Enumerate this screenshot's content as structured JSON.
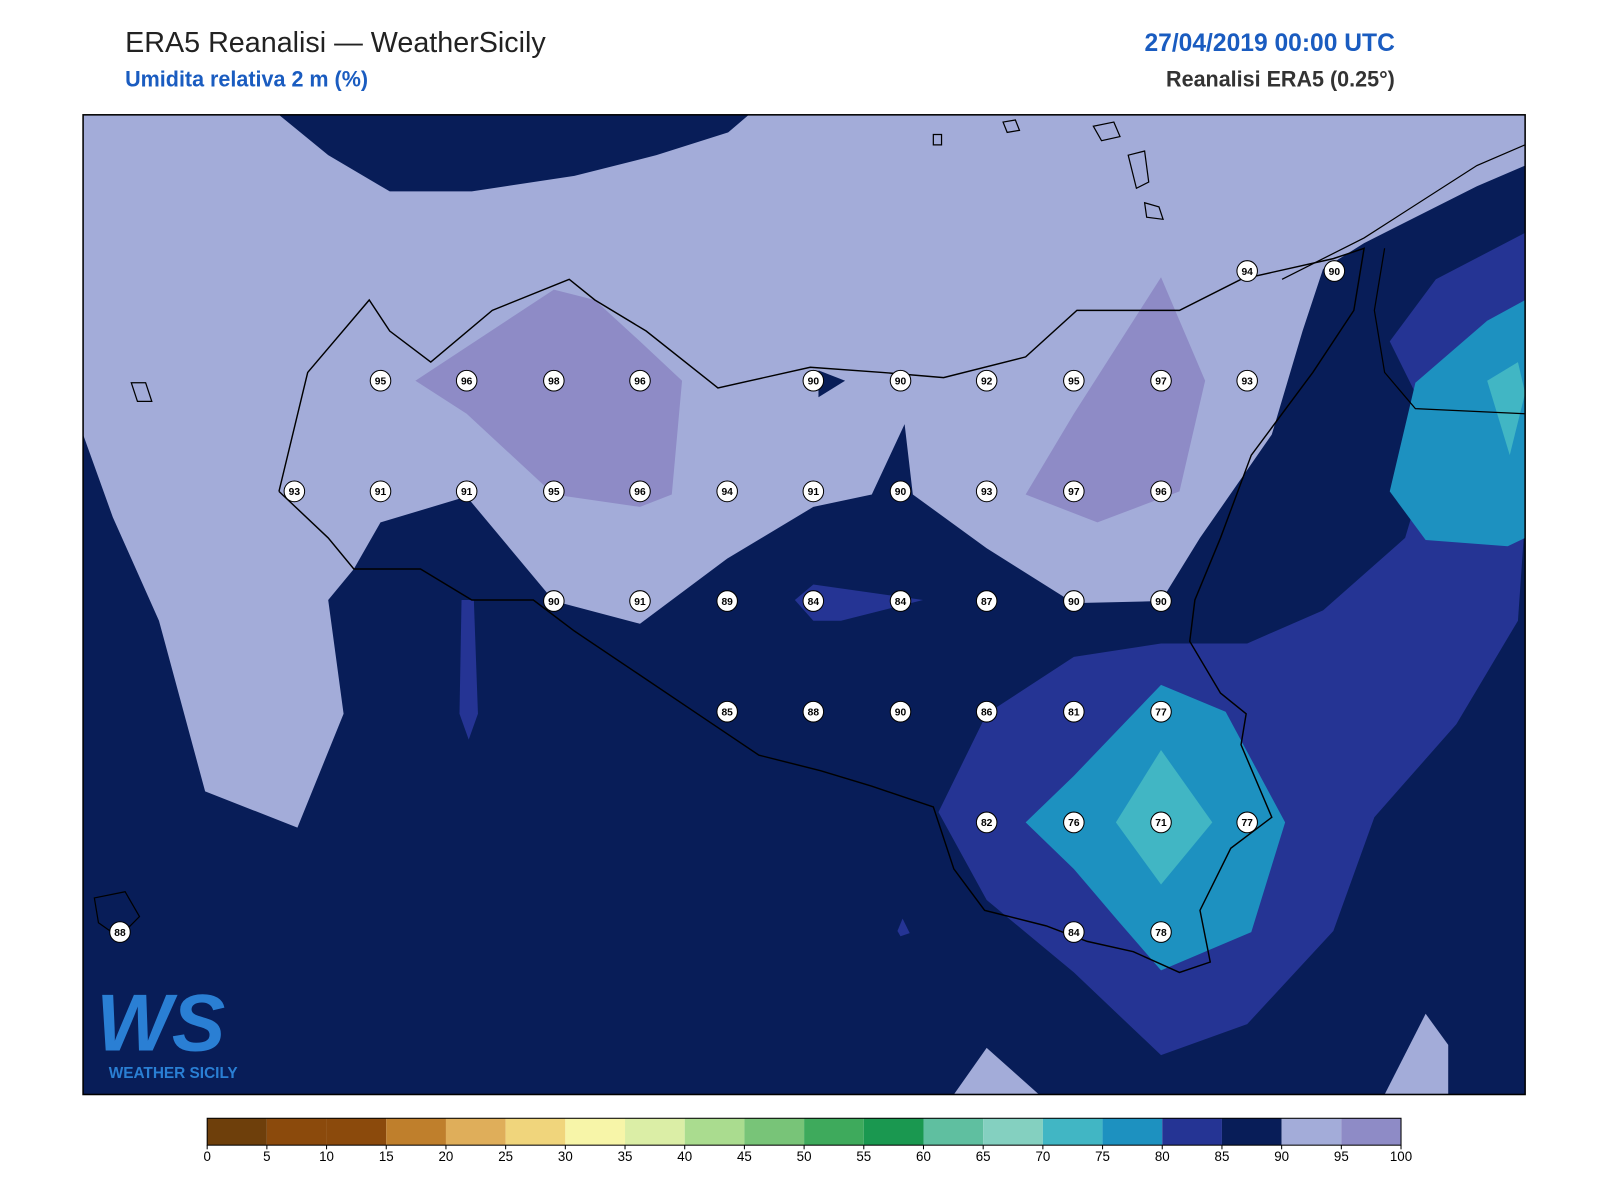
{
  "header": {
    "title": "ERA5 Reanalisi — WeatherSicily",
    "subtitle": "Umidita relativa 2 m (%)",
    "datetime": "27/04/2019 00:00 UTC",
    "source": "Reanalisi ERA5 (0.25°)"
  },
  "stations": [
    94,
    90,
    95,
    96,
    98,
    96,
    90,
    90,
    92,
    95,
    97,
    93,
    93,
    91,
    91,
    95,
    96,
    94,
    91,
    90,
    93,
    97,
    96,
    90,
    91,
    89,
    84,
    84,
    87,
    90,
    90,
    85,
    88,
    90,
    86,
    81,
    77,
    82,
    76,
    71,
    77,
    88,
    84,
    78
  ],
  "colorbar": {
    "ticks": [
      0,
      5,
      10,
      15,
      20,
      25,
      30,
      35,
      40,
      45,
      50,
      55,
      60,
      65,
      70,
      75,
      80,
      85,
      90,
      95,
      100
    ],
    "colors": [
      "#6e3f0b",
      "#8b4a0c",
      "#8b4a0c",
      "#bf7f2c",
      "#dfae5a",
      "#f0d57c",
      "#f7f5a8",
      "#dbeea6",
      "#aadc8f",
      "#78c478",
      "#3eaa5c",
      "#1a9850",
      "#5fbfa0",
      "#84d0c0",
      "#41b6c4",
      "#1d91c0",
      "#253494",
      "#081d58",
      "#a3acd9",
      "#8e8bc6"
    ]
  },
  "logo": {
    "mark": "WS",
    "name": "WEATHER SICILY"
  }
}
